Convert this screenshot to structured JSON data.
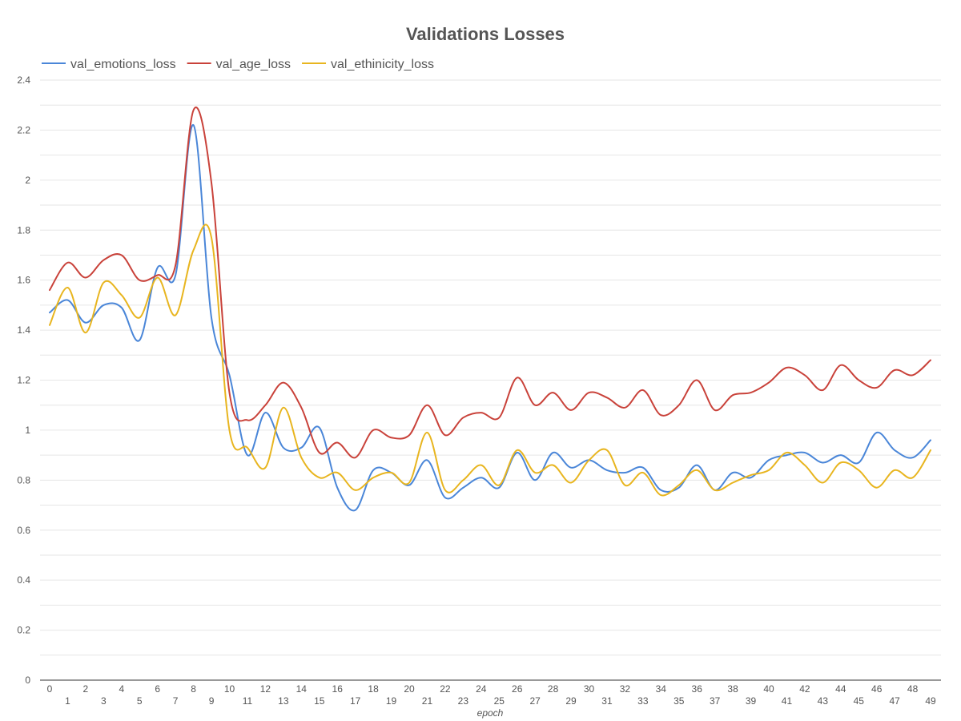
{
  "chart_data": {
    "type": "line",
    "title": "Validations Losses",
    "xlabel": "epoch",
    "ylabel": "",
    "ylim": [
      0,
      2.4
    ],
    "yticks": [
      "0",
      "0.2",
      "0.4",
      "0.6",
      "0.8",
      "1",
      "1.2",
      "1.4",
      "1.6",
      "1.8",
      "2",
      "2.2",
      "2.4"
    ],
    "legend_position": "top-left",
    "grid": true,
    "x": [
      "0",
      "1",
      "2",
      "3",
      "4",
      "5",
      "6",
      "7",
      "8",
      "9",
      "10",
      "11",
      "12",
      "13",
      "14",
      "15",
      "16",
      "17",
      "18",
      "19",
      "20",
      "21",
      "22",
      "23",
      "24",
      "25",
      "26",
      "27",
      "28",
      "29",
      "30",
      "31",
      "32",
      "33",
      "34",
      "35",
      "36",
      "37",
      "38",
      "39",
      "40",
      "41",
      "42",
      "43",
      "44",
      "45",
      "46",
      "47",
      "48",
      "49"
    ],
    "series": [
      {
        "name": "val_emotions_loss",
        "color": "#4a86d8",
        "values": [
          1.47,
          1.52,
          1.43,
          1.5,
          1.49,
          1.36,
          1.65,
          1.62,
          2.22,
          1.45,
          1.22,
          0.9,
          1.07,
          0.93,
          0.93,
          1.01,
          0.77,
          0.68,
          0.84,
          0.83,
          0.78,
          0.88,
          0.73,
          0.77,
          0.81,
          0.77,
          0.91,
          0.8,
          0.91,
          0.85,
          0.88,
          0.84,
          0.83,
          0.85,
          0.76,
          0.77,
          0.86,
          0.76,
          0.83,
          0.81,
          0.88,
          0.9,
          0.91,
          0.87,
          0.9,
          0.87,
          0.99,
          0.92,
          0.89,
          0.96
        ]
      },
      {
        "name": "val_age_loss",
        "color": "#c9423a",
        "values": [
          1.56,
          1.67,
          1.61,
          1.68,
          1.7,
          1.6,
          1.62,
          1.66,
          2.28,
          1.99,
          1.15,
          1.04,
          1.1,
          1.19,
          1.09,
          0.91,
          0.95,
          0.89,
          1.0,
          0.97,
          0.98,
          1.1,
          0.98,
          1.05,
          1.07,
          1.05,
          1.21,
          1.1,
          1.15,
          1.08,
          1.15,
          1.13,
          1.09,
          1.16,
          1.06,
          1.1,
          1.2,
          1.08,
          1.14,
          1.15,
          1.19,
          1.25,
          1.22,
          1.16,
          1.26,
          1.2,
          1.17,
          1.24,
          1.22,
          1.28
        ]
      },
      {
        "name": "val_ethinicity_loss",
        "color": "#e8b51f",
        "values": [
          1.42,
          1.57,
          1.39,
          1.59,
          1.54,
          1.45,
          1.61,
          1.46,
          1.72,
          1.77,
          1.0,
          0.93,
          0.85,
          1.09,
          0.89,
          0.81,
          0.83,
          0.76,
          0.81,
          0.83,
          0.79,
          0.99,
          0.76,
          0.8,
          0.86,
          0.78,
          0.92,
          0.83,
          0.86,
          0.79,
          0.88,
          0.92,
          0.78,
          0.83,
          0.74,
          0.78,
          0.84,
          0.76,
          0.79,
          0.82,
          0.84,
          0.91,
          0.86,
          0.79,
          0.87,
          0.84,
          0.77,
          0.84,
          0.81,
          0.92
        ]
      }
    ]
  }
}
